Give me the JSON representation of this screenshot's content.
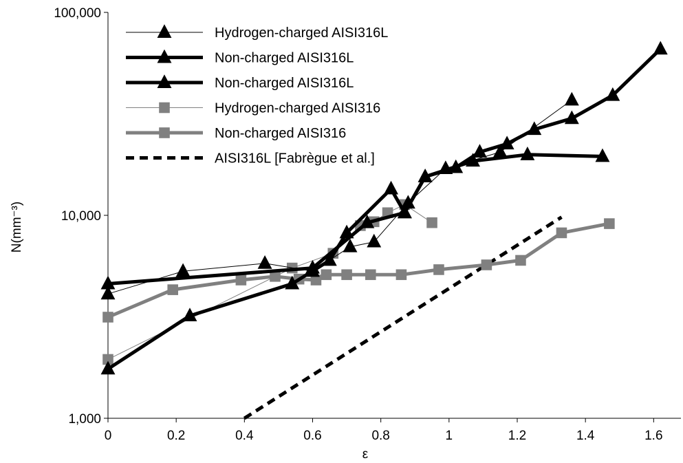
{
  "chart_data": {
    "type": "line",
    "title": "",
    "xlabel": "ε",
    "ylabel": "N(mm⁻³)",
    "xlim": [
      0,
      1.68
    ],
    "ylim": [
      1000,
      100000
    ],
    "y_scale": "log",
    "x_ticks": [
      "0",
      "0.2",
      "0.4",
      "0.6",
      "0.8",
      "1",
      "1.2",
      "1.4",
      "1.6"
    ],
    "x_tick_values": [
      0,
      0.2,
      0.4,
      0.6,
      0.8,
      1.0,
      1.2,
      1.4,
      1.6
    ],
    "y_ticks": [
      "1,000",
      "10,000",
      "100,000"
    ],
    "y_tick_values": [
      1000,
      10000,
      100000
    ],
    "grid": false,
    "legend_position": "top-left",
    "series": [
      {
        "name": "Hydrogen-charged AISI316L",
        "color": "#000000",
        "line": "thin",
        "marker": "triangle",
        "points": [
          [
            0,
            4100
          ],
          [
            0.22,
            5300
          ],
          [
            0.46,
            5800
          ],
          [
            0.6,
            5300
          ],
          [
            0.71,
            7000
          ],
          [
            0.78,
            7400
          ],
          [
            0.88,
            11500
          ],
          [
            0.99,
            17000
          ],
          [
            1.15,
            20500
          ],
          [
            1.36,
            37000
          ]
        ]
      },
      {
        "name": "Non-charged AISI316L",
        "color": "#000000",
        "line": "thick",
        "marker": "triangle",
        "points": [
          [
            0,
            1750
          ],
          [
            0.24,
            3200
          ],
          [
            0.54,
            4600
          ],
          [
            0.65,
            6000
          ],
          [
            0.7,
            8200
          ],
          [
            0.83,
            13500
          ],
          [
            0.87,
            10300
          ],
          [
            0.93,
            15500
          ],
          [
            1.02,
            17200
          ],
          [
            1.09,
            20500
          ],
          [
            1.17,
            22500
          ],
          [
            1.25,
            26500
          ],
          [
            1.36,
            30000
          ],
          [
            1.48,
            39000
          ],
          [
            1.62,
            66000
          ]
        ]
      },
      {
        "name": "Non-charged AISI316L",
        "color": "#000000",
        "line": "thick",
        "marker": "triangle",
        "points": [
          [
            0,
            4600
          ],
          [
            0.6,
            5500
          ],
          [
            0.76,
            9200
          ],
          [
            0.87,
            10300
          ],
          [
            0.93,
            15500
          ],
          [
            1.07,
            18500
          ],
          [
            1.23,
            19900
          ],
          [
            1.45,
            19500
          ]
        ]
      },
      {
        "name": "Hydrogen-charged AISI316",
        "color": "#808080",
        "line": "thin",
        "marker": "square",
        "points": [
          [
            0,
            1950
          ],
          [
            0.54,
            5500
          ],
          [
            0.66,
            6500
          ],
          [
            0.74,
            8900
          ],
          [
            0.78,
            9300
          ],
          [
            0.82,
            10300
          ],
          [
            0.87,
            11300
          ],
          [
            0.95,
            9200
          ]
        ]
      },
      {
        "name": "Non-charged AISI316",
        "color": "#808080",
        "line": "thick",
        "marker": "square",
        "points": [
          [
            0,
            3150
          ],
          [
            0.19,
            4300
          ],
          [
            0.39,
            4800
          ],
          [
            0.49,
            5000
          ],
          [
            0.56,
            4850
          ],
          [
            0.61,
            4800
          ],
          [
            0.64,
            5100
          ],
          [
            0.7,
            5100
          ],
          [
            0.77,
            5100
          ],
          [
            0.86,
            5100
          ],
          [
            0.97,
            5400
          ],
          [
            1.11,
            5700
          ],
          [
            1.21,
            6000
          ],
          [
            1.33,
            8200
          ],
          [
            1.47,
            9100
          ]
        ]
      },
      {
        "name": "AISI316L [Fabrègue et al.]",
        "color": "#000000",
        "line": "dashed",
        "marker": "none",
        "points": [
          [
            0.4,
            1000
          ],
          [
            1.33,
            9800
          ]
        ]
      }
    ]
  }
}
